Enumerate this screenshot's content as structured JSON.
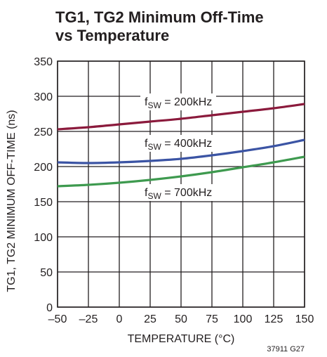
{
  "chart_data": {
    "type": "line",
    "title_lines": [
      "TG1, TG2 Minimum Off-Time",
      "vs Temperature"
    ],
    "xlabel": "TEMPERATURE (°C)",
    "ylabel": "TG1, TG2 MINIMUM OFF-TIME (ns)",
    "xlim": [
      -50,
      150
    ],
    "ylim": [
      0,
      350
    ],
    "xticks": [
      -50,
      -25,
      0,
      25,
      50,
      75,
      100,
      125,
      150
    ],
    "xtick_labels": [
      "–50",
      "–25",
      "0",
      "25",
      "50",
      "75",
      "100",
      "125",
      "150"
    ],
    "yticks": [
      0,
      50,
      100,
      150,
      200,
      250,
      300,
      350
    ],
    "ytick_labels": [
      "0",
      "50",
      "100",
      "150",
      "200",
      "250",
      "300",
      "350"
    ],
    "grid": true,
    "legend": "none",
    "series": [
      {
        "label": {
          "prefix": "f",
          "sub": "SW",
          "suffix": " = 200kHz"
        },
        "color": "#8b1a3c",
        "x": [
          -50,
          -25,
          0,
          25,
          50,
          75,
          100,
          125,
          150
        ],
        "y": [
          253,
          256,
          260,
          264,
          268,
          273,
          278,
          283,
          289
        ]
      },
      {
        "label": {
          "prefix": "f",
          "sub": "SW",
          "suffix": " = 400kHz"
        },
        "color": "#3b54a4",
        "x": [
          -50,
          -25,
          0,
          25,
          50,
          75,
          100,
          125,
          150
        ],
        "y": [
          206,
          205,
          206,
          208,
          211,
          216,
          222,
          229,
          238
        ]
      },
      {
        "label": {
          "prefix": "f",
          "sub": "SW",
          "suffix": " = 700kHz"
        },
        "color": "#3e9a4f",
        "x": [
          -50,
          -25,
          0,
          25,
          50,
          75,
          100,
          125,
          150
        ],
        "y": [
          172,
          174,
          177,
          181,
          186,
          192,
          199,
          206,
          214
        ]
      }
    ],
    "figure_code": "37911 G27"
  }
}
